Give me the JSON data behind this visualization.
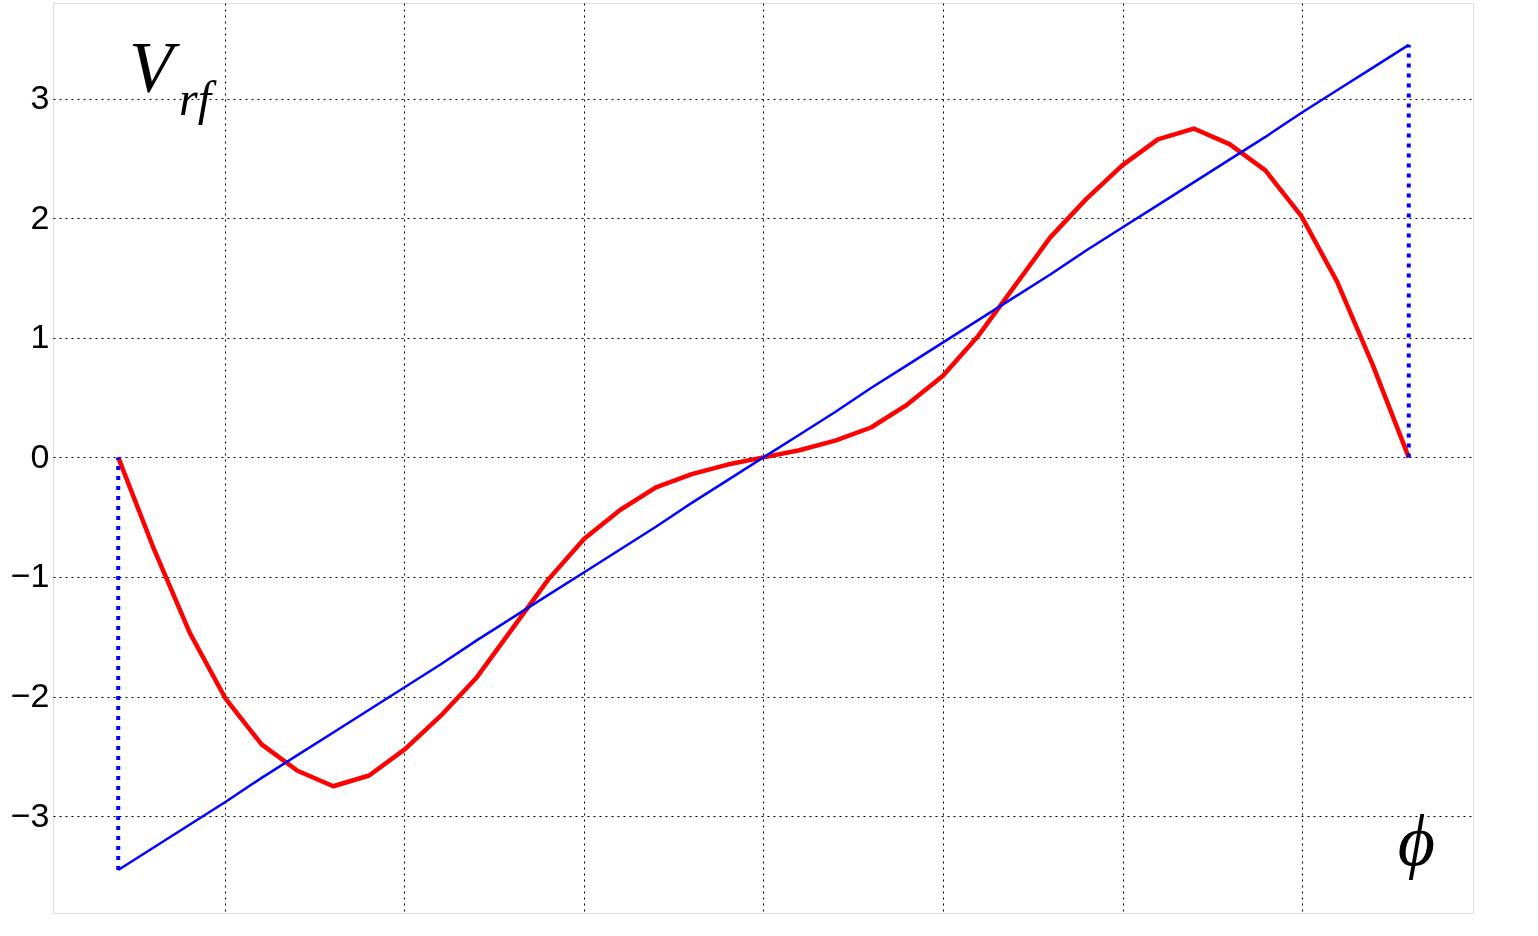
{
  "chart_data": {
    "type": "line",
    "xlabel": "ϕ",
    "ylabel": "V$_{rf}$",
    "categories": [
      null,
      null,
      null,
      null,
      null,
      null,
      null,
      null,
      null,
      null,
      null,
      null,
      null,
      null,
      null,
      null,
      null,
      null,
      null,
      null,
      null,
      null,
      null,
      null,
      null,
      null,
      null,
      null,
      null,
      null,
      null,
      null,
      null,
      null,
      null,
      null,
      null
    ],
    "ylim": [
      -3.81,
      3.8
    ],
    "yticks": [
      {
        "value": -3,
        "label": "−3"
      },
      {
        "value": -2,
        "label": "−2"
      },
      {
        "value": -1,
        "label": "−1"
      },
      0,
      1,
      2,
      3
    ],
    "tick_labels": "y",
    "grid": true,
    "series": [
      {
        "color": "#ff0000",
        "line_style": "solid",
        "values": [
          0,
          -0.77,
          -1.47,
          -2.02,
          -2.4,
          -2.62,
          -2.75,
          -2.66,
          -2.44,
          -2.16,
          -1.84,
          -1.43,
          -1.02,
          -0.68,
          -0.44,
          -0.25,
          -0.14,
          -0.06,
          0,
          0.06,
          0.14,
          0.25,
          0.44,
          0.68,
          1.02,
          1.43,
          1.84,
          2.16,
          2.44,
          2.66,
          2.75,
          2.62,
          2.4,
          2.02,
          1.47,
          0.77,
          0
        ]
      },
      {
        "color": "#0000ff",
        "line_style": "solid",
        "values": [
          -3.45,
          -3.26,
          -3.07,
          -2.88,
          -2.68,
          -2.49,
          -2.3,
          -2.11,
          -1.92,
          -1.73,
          -1.53,
          -1.34,
          -1.15,
          -0.96,
          -0.77,
          -0.58,
          -0.38,
          -0.19,
          0,
          0.19,
          0.38,
          0.58,
          0.77,
          0.96,
          1.15,
          1.34,
          1.53,
          1.73,
          1.92,
          2.11,
          2.3,
          2.49,
          2.68,
          2.88,
          3.07,
          3.26,
          3.45
        ],
        "errors": [
          [
            -3.45,
            0
          ],
          null,
          null,
          null,
          null,
          null,
          null,
          null,
          null,
          null,
          null,
          null,
          null,
          null,
          null,
          null,
          null,
          null,
          null,
          null,
          null,
          null,
          null,
          null,
          null,
          null,
          null,
          null,
          null,
          null,
          null,
          null,
          null,
          null,
          null,
          null,
          [
            0,
            3.45
          ]
        ]
      }
    ]
  }
}
